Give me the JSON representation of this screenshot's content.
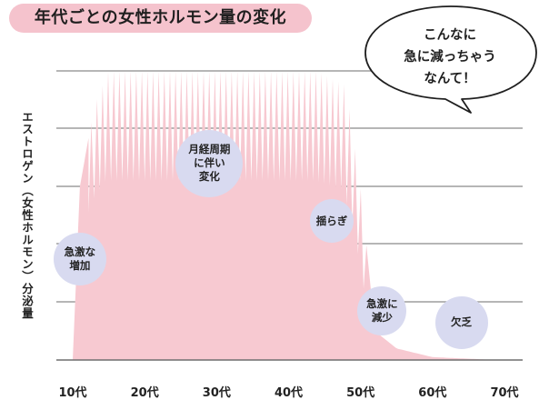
{
  "chart_data": {
    "type": "area",
    "title": "年代ごとの女性ホルモン量の変化",
    "ylabel": "エストロゲン（女性ホルモン）分泌量",
    "xlabel": "",
    "categories": [
      "10代",
      "20代",
      "30代",
      "40代",
      "50代",
      "60代",
      "70代"
    ],
    "x_range": [
      10,
      70
    ],
    "grid": true,
    "series": [
      {
        "values": [
          {
            "age": 10,
            "level": 0
          },
          {
            "age": 11,
            "level": 60
          },
          {
            "age": 13,
            "level": 88
          },
          {
            "age": 15,
            "level": 100
          },
          {
            "age": 44,
            "level": 100
          },
          {
            "age": 48,
            "level": 95
          },
          {
            "age": 50,
            "level": 60
          },
          {
            "age": 51,
            "level": 35
          },
          {
            "age": 52,
            "level": 10
          },
          {
            "age": 55,
            "level": 4
          },
          {
            "age": 60,
            "level": 1
          },
          {
            "age": 69,
            "level": 0
          }
        ]
      }
    ],
    "annotations": [
      {
        "text": "急激な\n増加",
        "age": 11,
        "level": 35
      },
      {
        "text": "月経周期\nに伴い\n変化",
        "age": 29,
        "level": 68
      },
      {
        "text": "揺らぎ",
        "age": 46,
        "level": 48
      },
      {
        "text": "急激に\n減少",
        "age": 53,
        "level": 17
      },
      {
        "text": "欠乏",
        "age": 64,
        "level": 13
      }
    ]
  },
  "speech_bubble": {
    "text": "こんなに\n急に減っちゃう\nなんて！"
  },
  "colors": {
    "area": "#f7c9d1",
    "bubble": "#d8daf0",
    "grid": "#8a8a8a",
    "title_bg": "#f5c3cd"
  }
}
